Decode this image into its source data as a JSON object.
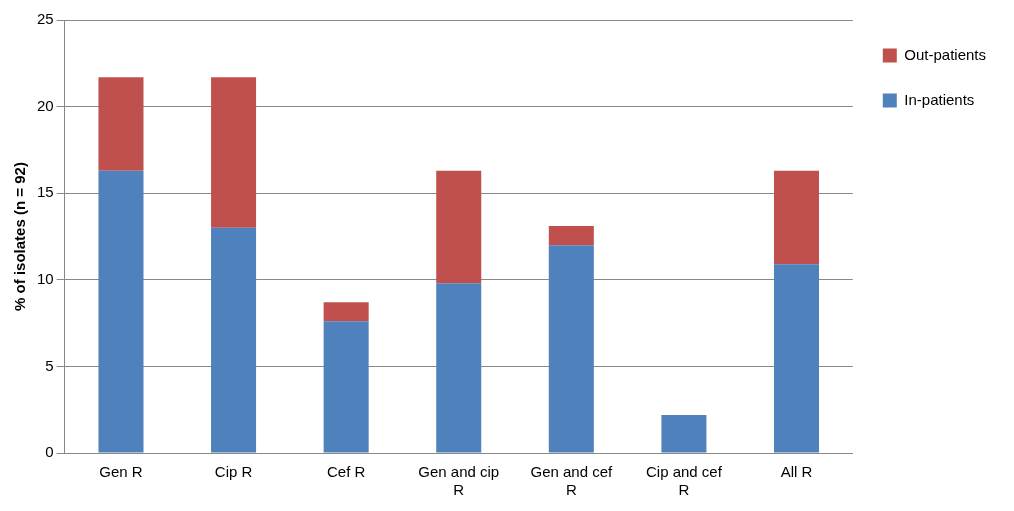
{
  "chart_data": {
    "type": "bar",
    "ylabel": "% of isolates (n = 92)",
    "categories": [
      "Gen R",
      "Cip R",
      "Cef R",
      "Gen and cip R",
      "Gen and cef R",
      "Cip and cef R",
      "All R"
    ],
    "stacked": true,
    "series": [
      {
        "name": "In-patients",
        "color": "#4f81bd",
        "values": [
          16.3,
          13.0,
          7.6,
          9.8,
          12.0,
          2.2,
          10.9
        ]
      },
      {
        "name": "Out-patients",
        "color": "#c0504d",
        "values": [
          5.4,
          8.7,
          1.1,
          6.5,
          1.1,
          0,
          5.4
        ]
      }
    ],
    "ylim": [
      0,
      25
    ],
    "yticks": [
      0,
      5,
      10,
      15,
      20,
      25
    ],
    "grid": "y",
    "legend": "right"
  }
}
